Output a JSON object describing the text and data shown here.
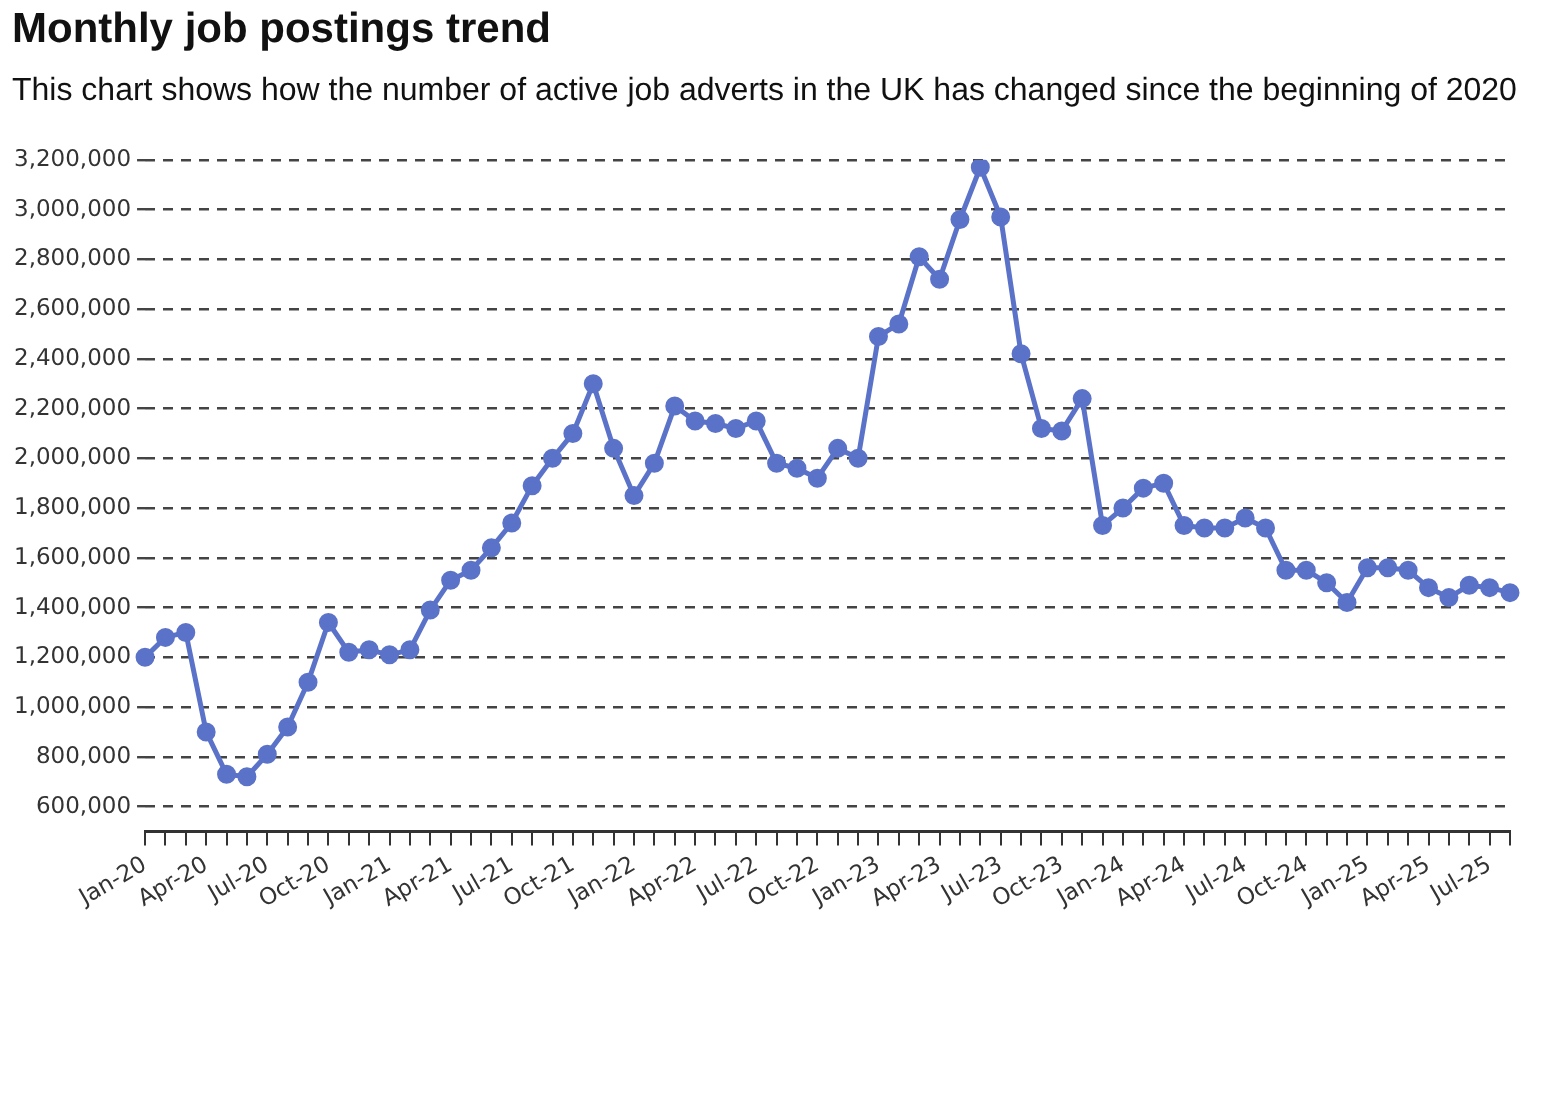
{
  "chart_data": {
    "type": "line",
    "title": "Monthly job postings trend",
    "subtitle": "This chart shows how the number of active job adverts in the UK has changed since the beginning of 2020",
    "categories": [
      "Jan-20",
      null,
      null,
      "Apr-20",
      null,
      null,
      "Jul-20",
      null,
      null,
      "Oct-20",
      null,
      null,
      "Jan-21",
      null,
      null,
      "Apr-21",
      null,
      null,
      "Jul-21",
      null,
      null,
      "Oct-21",
      null,
      null,
      "Jan-22",
      null,
      null,
      "Apr-22",
      null,
      null,
      "Jul-22",
      null,
      null,
      "Oct-22",
      null,
      null,
      "Jan-23",
      null,
      null,
      "Apr-23",
      null,
      null,
      "Jul-23",
      null,
      null,
      "Oct-23",
      null,
      null,
      "Jan-24",
      null,
      null,
      "Apr-24",
      null,
      null,
      "Jul-24",
      null,
      null,
      "Oct-24",
      null,
      null,
      "Jan-25",
      null,
      null,
      "Apr-25",
      null,
      null,
      "Jul-25",
      null
    ],
    "series": [
      {
        "color": "#5b72c9",
        "values": [
          1200000,
          1280000,
          1300000,
          900000,
          730000,
          720000,
          810000,
          920000,
          1100000,
          1340000,
          1220000,
          1230000,
          1210000,
          1230000,
          1390000,
          1510000,
          1550000,
          1640000,
          1740000,
          1890000,
          2000000,
          2100000,
          2300000,
          2040000,
          1850000,
          1980000,
          2210000,
          2150000,
          2140000,
          2120000,
          2150000,
          1980000,
          1960000,
          1920000,
          2040000,
          2000000,
          2490000,
          2540000,
          2810000,
          2720000,
          2960000,
          3170000,
          2970000,
          2420000,
          2120000,
          2110000,
          2240000,
          1730000,
          1800000,
          1880000,
          1900000,
          1730000,
          1720000,
          1720000,
          1760000,
          1720000,
          1550000,
          1550000,
          1500000,
          1420000,
          1560000,
          1560000,
          1550000,
          1480000,
          1440000,
          1490000,
          1480000,
          1460000
        ]
      }
    ],
    "ylim": [
      500000,
      3200000
    ],
    "yticks": [
      {
        "value": 600000,
        "label": "600,000"
      },
      {
        "value": 800000,
        "label": "800,000"
      },
      {
        "value": 1000000,
        "label": "1,000,000"
      },
      {
        "value": 1200000,
        "label": "1,200,000"
      },
      {
        "value": 1400000,
        "label": "1,400,000"
      },
      {
        "value": 1600000,
        "label": "1,600,000"
      },
      {
        "value": 1800000,
        "label": "1,800,000"
      },
      {
        "value": 2000000,
        "label": "2,000,000"
      },
      {
        "value": 2200000,
        "label": "2,200,000"
      },
      {
        "value": 2400000,
        "label": "2,400,000"
      },
      {
        "value": 2600000,
        "label": "2,600,000"
      },
      {
        "value": 2800000,
        "label": "2,800,000"
      },
      {
        "value": 3000000,
        "label": "3,000,000"
      },
      {
        "value": 3200000,
        "label": "3,200,000"
      }
    ],
    "grid": "y",
    "legend": false,
    "marker": "circle",
    "line_style": "solid"
  }
}
